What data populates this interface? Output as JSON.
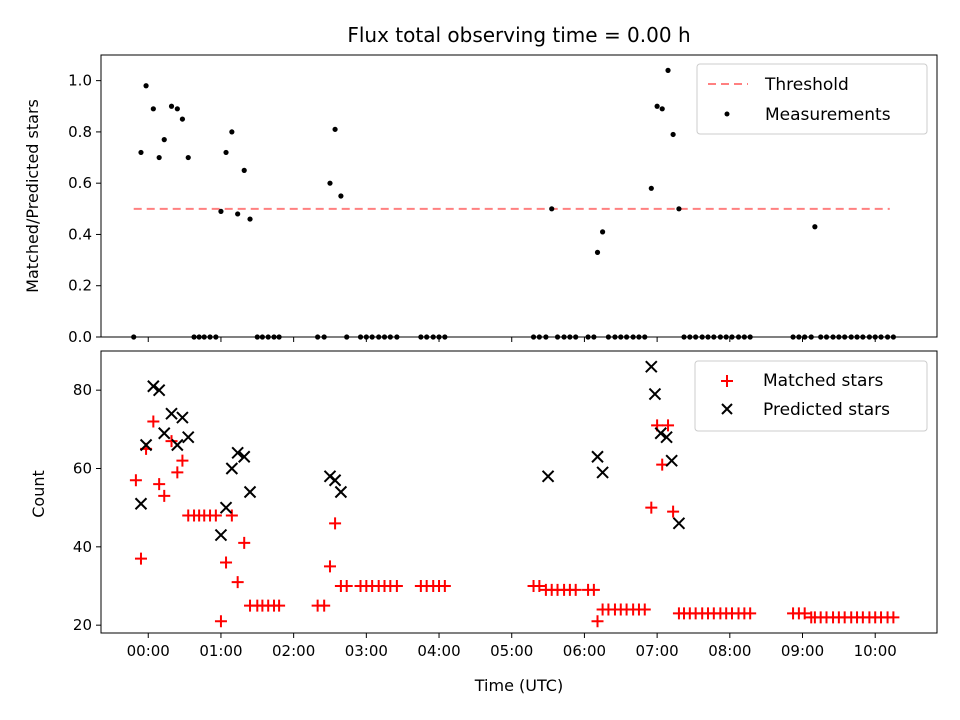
{
  "chart_data": [
    {
      "type": "scatter",
      "title": "Flux total observing time = 0.00 h",
      "xlabel": "",
      "ylabel": "Matched/Predicted stars",
      "xlim": [
        -0.65,
        10.85
      ],
      "ylim": [
        0.0,
        1.1
      ],
      "yticks": [
        0.0,
        0.2,
        0.4,
        0.6,
        0.8,
        1.0
      ],
      "ytick_labels": [
        "0.0",
        "0.2",
        "0.4",
        "0.6",
        "0.8",
        "1.0"
      ],
      "legend_position": "top-right",
      "threshold": {
        "label": "Threshold",
        "y": 0.5,
        "x_start": -0.2,
        "x_end": 10.2,
        "color": "#ff8080",
        "style": "dashed"
      },
      "series": [
        {
          "name": "Measurements",
          "color": "#000000",
          "marker": "dot",
          "x": [
            -0.2,
            -0.1,
            -0.03,
            0.07,
            0.15,
            0.22,
            0.32,
            0.4,
            0.47,
            0.55,
            0.63,
            0.7,
            0.77,
            0.85,
            0.93,
            1.0,
            1.07,
            1.15,
            1.23,
            1.32,
            1.4,
            1.5,
            1.57,
            1.65,
            1.73,
            1.8,
            2.33,
            2.42,
            2.5,
            2.57,
            2.65,
            2.73,
            2.92,
            3.0,
            3.08,
            3.17,
            3.25,
            3.33,
            3.42,
            3.75,
            3.83,
            3.92,
            4.0,
            4.08,
            5.3,
            5.38,
            5.47,
            5.55,
            5.63,
            5.72,
            5.8,
            5.88,
            6.05,
            6.13,
            6.18,
            6.25,
            6.33,
            6.42,
            6.5,
            6.58,
            6.67,
            6.75,
            6.83,
            6.92,
            7.0,
            7.07,
            7.15,
            7.22,
            7.3,
            7.37,
            7.45,
            7.53,
            7.62,
            7.7,
            7.78,
            7.87,
            7.95,
            8.03,
            8.12,
            8.2,
            8.28,
            8.87,
            8.95,
            9.03,
            9.12,
            9.17,
            9.25,
            9.33,
            9.42,
            9.5,
            9.58,
            9.67,
            9.75,
            9.83,
            9.92,
            10.0,
            10.08,
            10.17,
            10.25
          ],
          "y": [
            0.0,
            0.72,
            0.98,
            0.89,
            0.7,
            0.77,
            0.9,
            0.89,
            0.85,
            0.7,
            0.0,
            0.0,
            0.0,
            0.0,
            0.0,
            0.49,
            0.72,
            0.8,
            0.48,
            0.65,
            0.46,
            0.0,
            0.0,
            0.0,
            0.0,
            0.0,
            0.0,
            0.0,
            0.6,
            0.81,
            0.55,
            0.0,
            0.0,
            0.0,
            0.0,
            0.0,
            0.0,
            0.0,
            0.0,
            0.0,
            0.0,
            0.0,
            0.0,
            0.0,
            0.0,
            0.0,
            0.0,
            0.5,
            0.0,
            0.0,
            0.0,
            0.0,
            0.0,
            0.0,
            0.33,
            0.41,
            0.0,
            0.0,
            0.0,
            0.0,
            0.0,
            0.0,
            0.0,
            0.58,
            0.9,
            0.89,
            1.04,
            0.79,
            0.5,
            0.0,
            0.0,
            0.0,
            0.0,
            0.0,
            0.0,
            0.0,
            0.0,
            0.0,
            0.0,
            0.0,
            0.0,
            0.0,
            0.0,
            0.0,
            0.0,
            0.43,
            0.0,
            0.0,
            0.0,
            0.0,
            0.0,
            0.0,
            0.0,
            0.0,
            0.0,
            0.0,
            0.0,
            0.0,
            0.0
          ]
        }
      ]
    },
    {
      "type": "scatter",
      "title": "",
      "xlabel": "Time (UTC)",
      "ylabel": "Count",
      "xlim": [
        -0.65,
        10.85
      ],
      "ylim": [
        18,
        90
      ],
      "yticks": [
        20,
        40,
        60,
        80
      ],
      "ytick_labels": [
        "20",
        "40",
        "60",
        "80"
      ],
      "xticks": [
        0,
        1,
        2,
        3,
        4,
        5,
        6,
        7,
        8,
        9,
        10
      ],
      "xtick_labels": [
        "00:00",
        "01:00",
        "02:00",
        "03:00",
        "04:00",
        "05:00",
        "06:00",
        "07:00",
        "08:00",
        "09:00",
        "10:00"
      ],
      "legend_position": "top-right",
      "series": [
        {
          "name": "Matched stars",
          "color": "#ff0000",
          "marker": "plus",
          "x": [
            -0.17,
            -0.1,
            -0.03,
            0.07,
            0.15,
            0.22,
            0.32,
            0.4,
            0.47,
            0.55,
            0.63,
            0.7,
            0.77,
            0.85,
            0.93,
            1.0,
            1.07,
            1.15,
            1.23,
            1.32,
            1.4,
            1.5,
            1.57,
            1.65,
            1.73,
            1.8,
            2.33,
            2.42,
            2.5,
            2.57,
            2.65,
            2.73,
            2.92,
            3.0,
            3.08,
            3.17,
            3.25,
            3.33,
            3.42,
            3.75,
            3.83,
            3.92,
            4.0,
            4.08,
            5.3,
            5.38,
            5.47,
            5.55,
            5.63,
            5.72,
            5.8,
            5.88,
            6.05,
            6.13,
            6.18,
            6.25,
            6.33,
            6.42,
            6.5,
            6.58,
            6.67,
            6.75,
            6.83,
            6.92,
            7.0,
            7.07,
            7.15,
            7.22,
            7.3,
            7.37,
            7.45,
            7.53,
            7.62,
            7.7,
            7.78,
            7.87,
            7.95,
            8.03,
            8.12,
            8.2,
            8.28,
            8.87,
            8.95,
            9.03,
            9.12,
            9.17,
            9.25,
            9.33,
            9.42,
            9.5,
            9.58,
            9.67,
            9.75,
            9.83,
            9.92,
            10.0,
            10.08,
            10.17,
            10.25
          ],
          "y": [
            57,
            37,
            65,
            72,
            56,
            53,
            67,
            59,
            62,
            48,
            48,
            48,
            48,
            48,
            48,
            21,
            36,
            48,
            31,
            41,
            25,
            25,
            25,
            25,
            25,
            25,
            25,
            25,
            35,
            46,
            30,
            30,
            30,
            30,
            30,
            30,
            30,
            30,
            30,
            30,
            30,
            30,
            30,
            30,
            30,
            30,
            29,
            29,
            29,
            29,
            29,
            29,
            29,
            29,
            21,
            24,
            24,
            24,
            24,
            24,
            24,
            24,
            24,
            50,
            71,
            61,
            71,
            49,
            23,
            23,
            23,
            23,
            23,
            23,
            23,
            23,
            23,
            23,
            23,
            23,
            23,
            23,
            23,
            23,
            22,
            22,
            22,
            22,
            22,
            22,
            22,
            22,
            22,
            22,
            22,
            22,
            22,
            22,
            22
          ]
        },
        {
          "name": "Predicted stars",
          "color": "#000000",
          "marker": "x",
          "x": [
            -0.1,
            -0.03,
            0.07,
            0.15,
            0.22,
            0.32,
            0.4,
            0.47,
            0.55,
            1.0,
            1.07,
            1.15,
            1.23,
            1.32,
            1.4,
            2.5,
            2.57,
            2.65,
            5.5,
            6.18,
            6.25,
            6.92,
            6.97,
            7.05,
            7.13,
            7.2,
            7.3
          ],
          "y": [
            51,
            66,
            81,
            80,
            69,
            74,
            66,
            73,
            68,
            43,
            50,
            60,
            64,
            63,
            54,
            58,
            57,
            54,
            58,
            63,
            59,
            86,
            79,
            69,
            68,
            62,
            46
          ]
        }
      ]
    }
  ],
  "legend_labels": {
    "threshold": "Threshold",
    "measurements": "Measurements",
    "matched": "Matched stars",
    "predicted": "Predicted stars"
  }
}
